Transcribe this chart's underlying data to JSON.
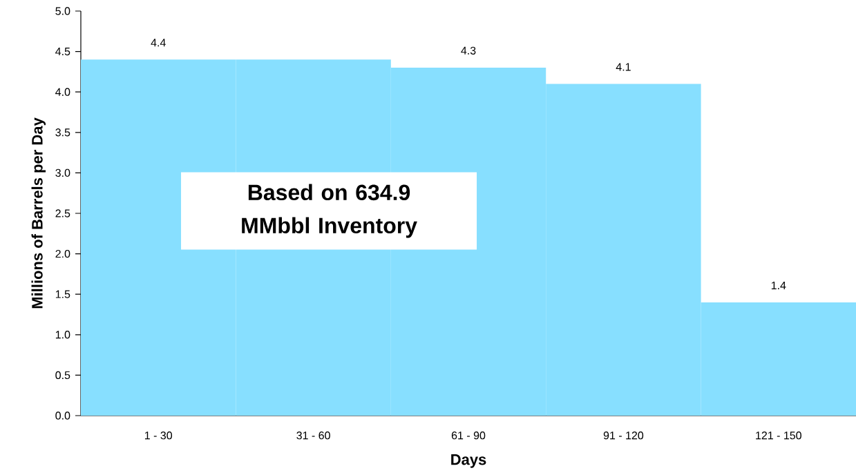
{
  "chart_data": {
    "type": "bar",
    "xlabel": "Days",
    "ylabel": "Millions of Barrels per  Day",
    "categories": [
      "1 - 30",
      "31 - 60",
      "61 - 90",
      "91 - 120",
      "121 - 150"
    ],
    "values": [
      4.4,
      4.4,
      4.3,
      4.1,
      1.4
    ],
    "value_labels": [
      "4.4",
      null,
      "4.3",
      "4.1",
      "1.4"
    ],
    "color": "#87dfff",
    "ylim": [
      0,
      5
    ],
    "yticks": [
      {
        "value": 0,
        "label": "0.0"
      },
      {
        "value": 0.5,
        "label": "0.5"
      },
      {
        "value": 1,
        "label": "1.0"
      },
      {
        "value": 1.5,
        "label": "1.5"
      },
      {
        "value": 2,
        "label": "2.0"
      },
      {
        "value": 2.5,
        "label": "2.5"
      },
      {
        "value": 3,
        "label": "3.0"
      },
      {
        "value": 3.5,
        "label": "3.5"
      },
      {
        "value": 4,
        "label": "4.0"
      },
      {
        "value": 4.5,
        "label": "4.5"
      },
      {
        "value": 5,
        "label": "5.0"
      }
    ],
    "annotations": [
      "**Based on 634.9 MMbbl Inventory**"
    ]
  }
}
